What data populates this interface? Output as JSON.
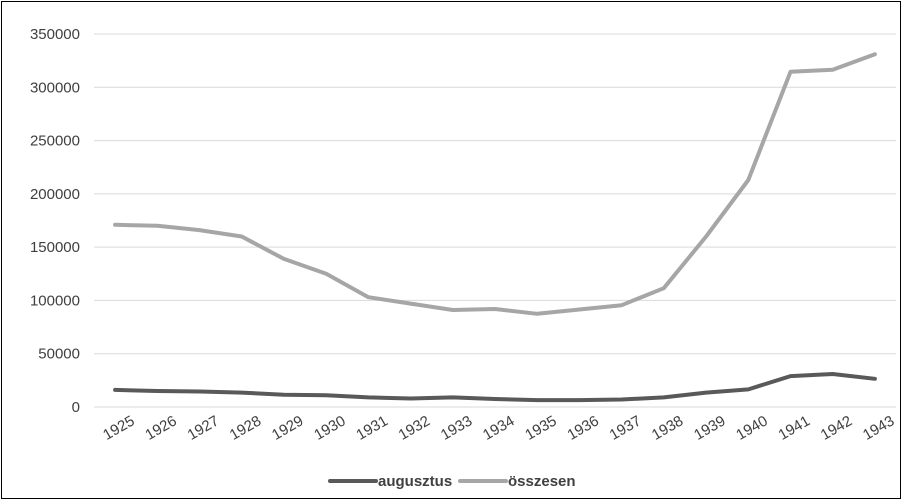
{
  "chart_data": {
    "type": "line",
    "title": "",
    "xlabel": "",
    "ylabel": "",
    "x": [
      "1925",
      "1926",
      "1927",
      "1928",
      "1929",
      "1930",
      "1931",
      "1932",
      "1933",
      "1934",
      "1935",
      "1936",
      "1937",
      "1938",
      "1939",
      "1940",
      "1941",
      "1942",
      "1943"
    ],
    "ylim": [
      0,
      350000
    ],
    "yticks": [
      0,
      50000,
      100000,
      150000,
      200000,
      250000,
      300000,
      350000
    ],
    "ytick_labels": [
      "0",
      "50000",
      "100000",
      "150000",
      "200000",
      "250000",
      "300000",
      "350000"
    ],
    "grid": "horizontal",
    "legend_position": "bottom",
    "series": [
      {
        "name": "augusztus",
        "color": "#595959",
        "values": [
          16000,
          15000,
          14500,
          13500,
          11500,
          11000,
          9000,
          8000,
          9000,
          7500,
          6500,
          6500,
          7000,
          9000,
          13500,
          16500,
          29000,
          31000,
          26500
        ]
      },
      {
        "name": "összesen",
        "color": "#a6a6a6",
        "values": [
          171000,
          170000,
          166000,
          160000,
          139000,
          125000,
          103000,
          97000,
          91000,
          92000,
          87500,
          91500,
          95500,
          111500,
          160000,
          213000,
          314500,
          316500,
          331000
        ]
      }
    ]
  }
}
